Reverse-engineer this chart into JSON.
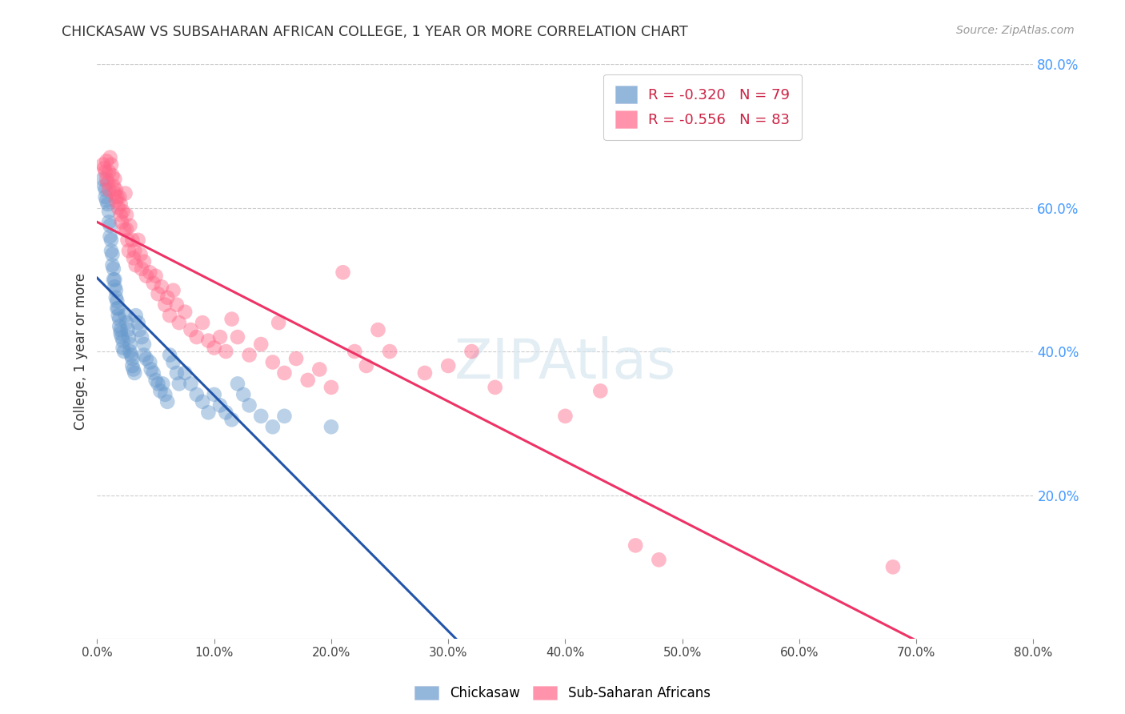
{
  "title": "CHICKASAW VS SUBSAHARAN AFRICAN COLLEGE, 1 YEAR OR MORE CORRELATION CHART",
  "source": "Source: ZipAtlas.com",
  "ylabel": "College, 1 year or more",
  "xlim": [
    0.0,
    0.8
  ],
  "ylim": [
    0.0,
    0.8
  ],
  "xticks": [
    0.0,
    0.1,
    0.2,
    0.3,
    0.4,
    0.5,
    0.6,
    0.7,
    0.8
  ],
  "yticks_right": [
    0.8,
    0.6,
    0.4,
    0.2
  ],
  "chickasaw_R": -0.32,
  "chickasaw_N": 79,
  "subsaharan_R": -0.556,
  "subsaharan_N": 83,
  "watermark": "ZIPAtlas",
  "background_color": "#ffffff",
  "grid_color": "#cccccc",
  "right_axis_color": "#4499ff",
  "title_color": "#333333",
  "chickasaw_color": "#6699cc",
  "subsaharan_color": "#ff6688",
  "chickasaw_line_solid_end": 0.37,
  "chickasaw_scatter": [
    [
      0.005,
      0.64
    ],
    [
      0.006,
      0.63
    ],
    [
      0.007,
      0.625
    ],
    [
      0.007,
      0.615
    ],
    [
      0.008,
      0.61
    ],
    [
      0.009,
      0.605
    ],
    [
      0.01,
      0.595
    ],
    [
      0.01,
      0.58
    ],
    [
      0.011,
      0.575
    ],
    [
      0.011,
      0.56
    ],
    [
      0.012,
      0.555
    ],
    [
      0.012,
      0.54
    ],
    [
      0.013,
      0.535
    ],
    [
      0.013,
      0.52
    ],
    [
      0.014,
      0.515
    ],
    [
      0.014,
      0.5
    ],
    [
      0.015,
      0.5
    ],
    [
      0.015,
      0.49
    ],
    [
      0.016,
      0.485
    ],
    [
      0.016,
      0.475
    ],
    [
      0.017,
      0.47
    ],
    [
      0.017,
      0.46
    ],
    [
      0.018,
      0.46
    ],
    [
      0.018,
      0.45
    ],
    [
      0.019,
      0.445
    ],
    [
      0.019,
      0.435
    ],
    [
      0.02,
      0.43
    ],
    [
      0.02,
      0.425
    ],
    [
      0.021,
      0.42
    ],
    [
      0.022,
      0.415
    ],
    [
      0.022,
      0.405
    ],
    [
      0.023,
      0.4
    ],
    [
      0.024,
      0.45
    ],
    [
      0.025,
      0.44
    ],
    [
      0.026,
      0.43
    ],
    [
      0.027,
      0.42
    ],
    [
      0.028,
      0.41
    ],
    [
      0.028,
      0.4
    ],
    [
      0.029,
      0.395
    ],
    [
      0.03,
      0.39
    ],
    [
      0.03,
      0.38
    ],
    [
      0.031,
      0.375
    ],
    [
      0.032,
      0.37
    ],
    [
      0.033,
      0.45
    ],
    [
      0.035,
      0.44
    ],
    [
      0.036,
      0.43
    ],
    [
      0.038,
      0.42
    ],
    [
      0.04,
      0.41
    ],
    [
      0.04,
      0.395
    ],
    [
      0.042,
      0.39
    ],
    [
      0.045,
      0.385
    ],
    [
      0.046,
      0.375
    ],
    [
      0.048,
      0.37
    ],
    [
      0.05,
      0.36
    ],
    [
      0.052,
      0.355
    ],
    [
      0.054,
      0.345
    ],
    [
      0.056,
      0.355
    ],
    [
      0.058,
      0.34
    ],
    [
      0.06,
      0.33
    ],
    [
      0.062,
      0.395
    ],
    [
      0.065,
      0.385
    ],
    [
      0.068,
      0.37
    ],
    [
      0.07,
      0.355
    ],
    [
      0.075,
      0.37
    ],
    [
      0.08,
      0.355
    ],
    [
      0.085,
      0.34
    ],
    [
      0.09,
      0.33
    ],
    [
      0.095,
      0.315
    ],
    [
      0.1,
      0.34
    ],
    [
      0.105,
      0.325
    ],
    [
      0.11,
      0.315
    ],
    [
      0.115,
      0.305
    ],
    [
      0.12,
      0.355
    ],
    [
      0.125,
      0.34
    ],
    [
      0.13,
      0.325
    ],
    [
      0.14,
      0.31
    ],
    [
      0.15,
      0.295
    ],
    [
      0.16,
      0.31
    ],
    [
      0.2,
      0.295
    ]
  ],
  "subsaharan_scatter": [
    [
      0.005,
      0.66
    ],
    [
      0.006,
      0.655
    ],
    [
      0.007,
      0.65
    ],
    [
      0.008,
      0.665
    ],
    [
      0.008,
      0.64
    ],
    [
      0.009,
      0.635
    ],
    [
      0.01,
      0.65
    ],
    [
      0.01,
      0.625
    ],
    [
      0.011,
      0.67
    ],
    [
      0.012,
      0.66
    ],
    [
      0.013,
      0.645
    ],
    [
      0.014,
      0.63
    ],
    [
      0.015,
      0.62
    ],
    [
      0.015,
      0.64
    ],
    [
      0.016,
      0.61
    ],
    [
      0.016,
      0.625
    ],
    [
      0.017,
      0.615
    ],
    [
      0.018,
      0.6
    ],
    [
      0.019,
      0.615
    ],
    [
      0.02,
      0.59
    ],
    [
      0.02,
      0.605
    ],
    [
      0.021,
      0.58
    ],
    [
      0.022,
      0.595
    ],
    [
      0.023,
      0.57
    ],
    [
      0.024,
      0.62
    ],
    [
      0.025,
      0.59
    ],
    [
      0.025,
      0.57
    ],
    [
      0.026,
      0.555
    ],
    [
      0.027,
      0.54
    ],
    [
      0.028,
      0.575
    ],
    [
      0.03,
      0.555
    ],
    [
      0.031,
      0.53
    ],
    [
      0.032,
      0.54
    ],
    [
      0.033,
      0.52
    ],
    [
      0.035,
      0.555
    ],
    [
      0.037,
      0.535
    ],
    [
      0.038,
      0.515
    ],
    [
      0.04,
      0.525
    ],
    [
      0.042,
      0.505
    ],
    [
      0.045,
      0.51
    ],
    [
      0.048,
      0.495
    ],
    [
      0.05,
      0.505
    ],
    [
      0.052,
      0.48
    ],
    [
      0.055,
      0.49
    ],
    [
      0.058,
      0.465
    ],
    [
      0.06,
      0.475
    ],
    [
      0.062,
      0.45
    ],
    [
      0.065,
      0.485
    ],
    [
      0.068,
      0.465
    ],
    [
      0.07,
      0.44
    ],
    [
      0.075,
      0.455
    ],
    [
      0.08,
      0.43
    ],
    [
      0.085,
      0.42
    ],
    [
      0.09,
      0.44
    ],
    [
      0.095,
      0.415
    ],
    [
      0.1,
      0.405
    ],
    [
      0.105,
      0.42
    ],
    [
      0.11,
      0.4
    ],
    [
      0.115,
      0.445
    ],
    [
      0.12,
      0.42
    ],
    [
      0.13,
      0.395
    ],
    [
      0.14,
      0.41
    ],
    [
      0.15,
      0.385
    ],
    [
      0.155,
      0.44
    ],
    [
      0.16,
      0.37
    ],
    [
      0.17,
      0.39
    ],
    [
      0.18,
      0.36
    ],
    [
      0.19,
      0.375
    ],
    [
      0.2,
      0.35
    ],
    [
      0.21,
      0.51
    ],
    [
      0.22,
      0.4
    ],
    [
      0.23,
      0.38
    ],
    [
      0.24,
      0.43
    ],
    [
      0.25,
      0.4
    ],
    [
      0.28,
      0.37
    ],
    [
      0.3,
      0.38
    ],
    [
      0.32,
      0.4
    ],
    [
      0.34,
      0.35
    ],
    [
      0.4,
      0.31
    ],
    [
      0.43,
      0.345
    ],
    [
      0.46,
      0.13
    ],
    [
      0.48,
      0.11
    ],
    [
      0.68,
      0.1
    ]
  ]
}
